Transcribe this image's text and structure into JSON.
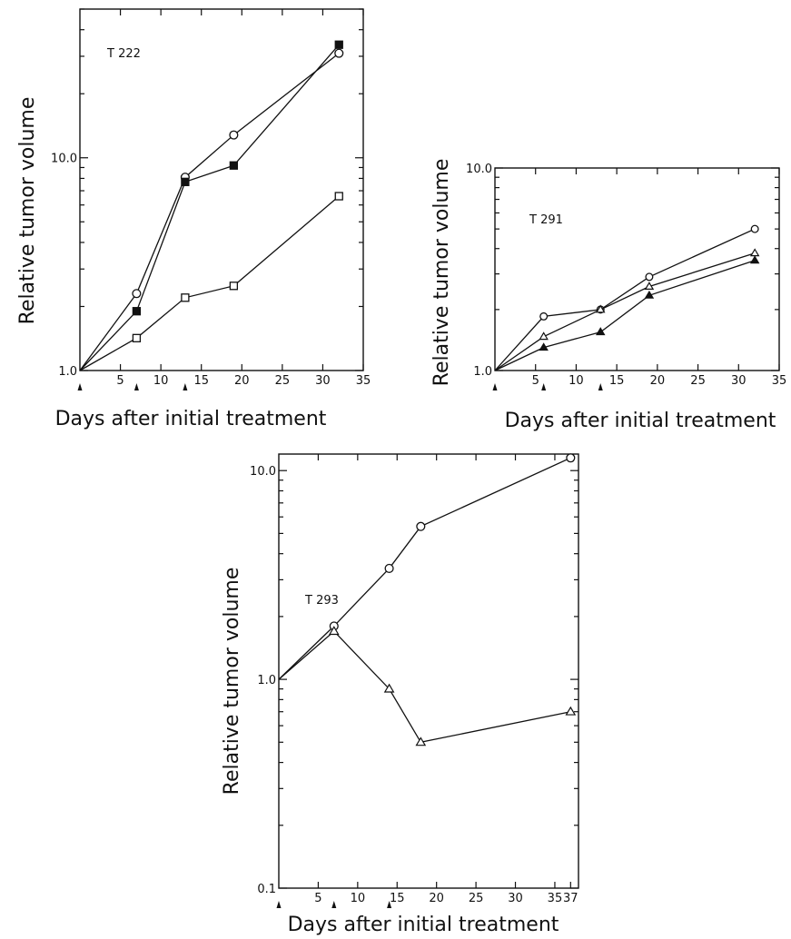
{
  "chart_data": [
    {
      "type": "line",
      "panel_label": "T 222",
      "xlabel": "Days after initial treatment",
      "ylabel": "Relative tumor volume",
      "xlim": [
        0,
        35
      ],
      "ylim": [
        1,
        50
      ],
      "yscale": "log",
      "x_tick_labels": [
        "5",
        "10",
        "15",
        "20",
        "25",
        "30",
        "35"
      ],
      "x_tick_values": [
        5,
        10,
        15,
        20,
        25,
        30,
        35
      ],
      "y_tick_labels": [
        "1.0",
        "10.0"
      ],
      "y_tick_values": [
        1,
        10
      ],
      "treatment_days": [
        0,
        7,
        13
      ],
      "grid": false,
      "series": [
        {
          "marker": "open-circle",
          "x": [
            0,
            7,
            13,
            19,
            32
          ],
          "y": [
            1.0,
            2.3,
            8.1,
            12.8,
            31
          ]
        },
        {
          "marker": "filled-square",
          "x": [
            0,
            7,
            13,
            19,
            32
          ],
          "y": [
            1.0,
            1.9,
            7.7,
            9.2,
            34
          ]
        },
        {
          "marker": "open-square",
          "x": [
            0,
            7,
            13,
            19,
            32
          ],
          "y": [
            1.0,
            1.42,
            2.2,
            2.5,
            6.6
          ]
        }
      ]
    },
    {
      "type": "line",
      "panel_label": "T 291",
      "xlabel": "Days after initial treatment",
      "ylabel": "Relative tumor volume",
      "xlim": [
        0,
        35
      ],
      "ylim": [
        1,
        10
      ],
      "yscale": "log",
      "x_tick_labels": [
        "5",
        "10",
        "15",
        "20",
        "25",
        "30",
        "35"
      ],
      "x_tick_values": [
        5,
        10,
        15,
        20,
        25,
        30,
        35
      ],
      "y_tick_labels": [
        "1.0",
        "10.0"
      ],
      "y_tick_values": [
        1,
        10
      ],
      "treatment_days": [
        0,
        6,
        13
      ],
      "grid": false,
      "series": [
        {
          "marker": "open-circle",
          "x": [
            0,
            6,
            13,
            19,
            32
          ],
          "y": [
            1.0,
            1.85,
            2.0,
            2.9,
            5.0
          ]
        },
        {
          "marker": "open-triangle",
          "x": [
            0,
            6,
            13,
            19,
            32
          ],
          "y": [
            1.0,
            1.47,
            2.0,
            2.6,
            3.8
          ]
        },
        {
          "marker": "filled-triangle",
          "x": [
            0,
            6,
            13,
            19,
            32
          ],
          "y": [
            1.0,
            1.3,
            1.55,
            2.35,
            3.5
          ]
        }
      ]
    },
    {
      "type": "line",
      "panel_label": "T 293",
      "xlabel": "Days after initial treatment",
      "ylabel": "Relative tumor volume",
      "xlim": [
        0,
        38
      ],
      "ylim": [
        0.1,
        12
      ],
      "yscale": "log",
      "x_tick_labels": [
        "5",
        "10",
        "15",
        "20",
        "25",
        "30",
        "35",
        "37"
      ],
      "x_tick_values": [
        5,
        10,
        15,
        20,
        25,
        30,
        35,
        37
      ],
      "y_tick_labels": [
        "0.1",
        "1.0",
        "10.0"
      ],
      "y_tick_values": [
        0.1,
        1,
        10
      ],
      "treatment_days": [
        0,
        7,
        14
      ],
      "grid": false,
      "series": [
        {
          "marker": "open-circle",
          "x": [
            0,
            7,
            14,
            18,
            37
          ],
          "y": [
            1.0,
            1.8,
            3.4,
            5.4,
            11.5
          ]
        },
        {
          "marker": "open-triangle",
          "x": [
            0,
            7,
            14,
            18,
            37
          ],
          "y": [
            1.0,
            1.7,
            0.9,
            0.5,
            0.7
          ]
        }
      ]
    }
  ]
}
